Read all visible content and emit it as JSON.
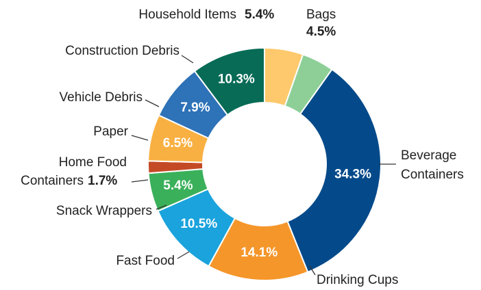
{
  "chart_data": {
    "type": "donut",
    "categories": [
      "Household Items",
      "Bags",
      "Beverage Containers",
      "Drinking Cups",
      "Fast Food",
      "Snack Wrappers",
      "Home Food Containers",
      "Paper",
      "Vehicle Debris",
      "Construction Debris"
    ],
    "values": [
      5.4,
      4.5,
      34.3,
      14.1,
      10.5,
      5.4,
      1.7,
      6.5,
      7.9,
      10.3
    ],
    "value_labels": [
      "5.4%",
      "4.5%",
      "34.3%",
      "14.1%",
      "10.5%",
      "5.4%",
      "1.7%",
      "6.5%",
      "7.9%",
      "10.3%"
    ],
    "colors": [
      "#fdc96c",
      "#8ecf98",
      "#044a8a",
      "#f5962a",
      "#1aa3dd",
      "#3ab05a",
      "#c44a26",
      "#f9b042",
      "#2e72b8",
      "#076b56"
    ]
  }
}
